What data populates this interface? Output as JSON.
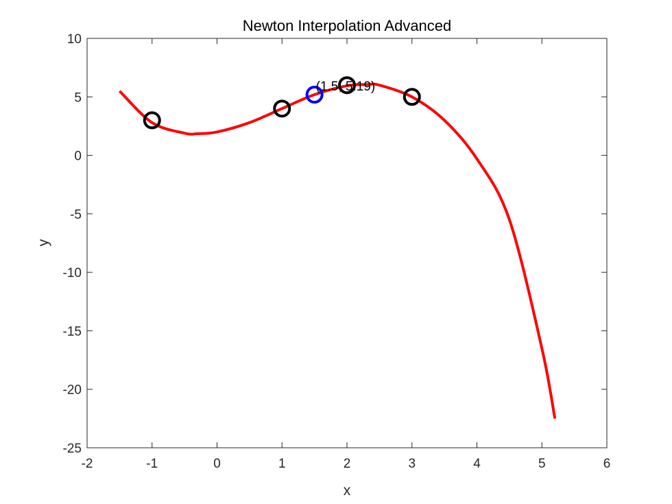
{
  "chart_data": {
    "type": "line",
    "title": "Newton Interpolation Advanced",
    "xlabel": "x",
    "ylabel": "y",
    "xlim": [
      -2,
      6
    ],
    "ylim": [
      -25,
      10
    ],
    "xticks": [
      -2,
      -1,
      0,
      1,
      2,
      3,
      4,
      5,
      6
    ],
    "yticks": [
      -25,
      -20,
      -15,
      -10,
      -5,
      0,
      5,
      10
    ],
    "grid": false,
    "series": [
      {
        "kind": "curve",
        "color": "#ff0000",
        "x": [
          -1.5,
          -1.0,
          -0.5,
          -0.3,
          0.0,
          0.5,
          1.0,
          1.5,
          2.0,
          2.3,
          2.5,
          3.0,
          3.5,
          4.0,
          4.5,
          5.0,
          5.2
        ],
        "y": [
          5.5,
          2.8,
          1.9,
          1.85,
          2.0,
          2.8,
          4.0,
          5.19,
          5.95,
          6.05,
          6.0,
          5.0,
          3.0,
          -0.3,
          -5.5,
          -16.5,
          -22.5
        ]
      },
      {
        "kind": "markers",
        "marker": "circle",
        "color": "#000000",
        "x": [
          -1,
          1,
          2,
          3
        ],
        "y": [
          3,
          4,
          6,
          5
        ]
      },
      {
        "kind": "markers",
        "marker": "circle",
        "color": "#0000ff",
        "x": [
          1.5
        ],
        "y": [
          5.19
        ]
      }
    ],
    "annotations": [
      {
        "text": "(1.5, 5.19)",
        "x": 1.5,
        "y": 5.19
      }
    ]
  }
}
